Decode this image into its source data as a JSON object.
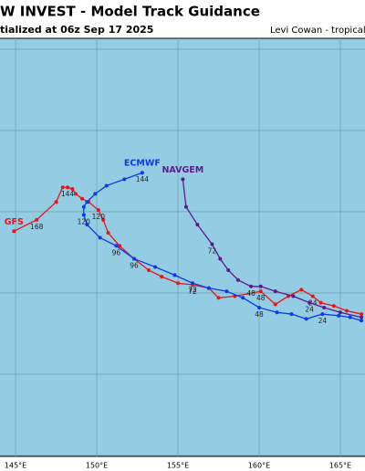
{
  "chart_data": {
    "type": "track",
    "title": "W INVEST - Model Track Guidance",
    "subtitle": "tialized at 06z Sep 17 2025",
    "credit": "Levi Cowan - tropicaltic",
    "xlim": [
      144.04,
      166.52
    ],
    "ylim": [
      4.94,
      30.67
    ],
    "xticks": [
      {
        "value": 145,
        "label": "145°E"
      },
      {
        "value": 150,
        "label": "150°E"
      },
      {
        "value": 155,
        "label": "155°E"
      },
      {
        "value": 160,
        "label": "160°E"
      },
      {
        "value": 165,
        "label": "165°E"
      }
    ],
    "ygrid": [
      5,
      10,
      15,
      20,
      25,
      30
    ],
    "series": [
      {
        "name": "GFS",
        "color": "#e8141a",
        "x": [
          166.3,
          165.4,
          164.6,
          163.8,
          163.3,
          162.6,
          161.8,
          161.0,
          160.1,
          158.5,
          157.5,
          156.9,
          155.9,
          155.0,
          154.0,
          153.2,
          152.3,
          151.4,
          150.7,
          150.4,
          150.1,
          149.5,
          149.1,
          148.7,
          148.5,
          148.2,
          147.9,
          147.5,
          146.3,
          144.9
        ],
        "values": [
          13.7,
          13.9,
          14.2,
          14.4,
          14.8,
          15.2,
          14.8,
          14.3,
          15.1,
          14.8,
          14.7,
          15.3,
          15.5,
          15.6,
          16.0,
          16.4,
          17.1,
          17.9,
          18.7,
          19.5,
          20.1,
          20.6,
          20.8,
          21.1,
          21.4,
          21.5,
          21.5,
          20.6,
          19.5,
          18.8
        ],
        "labels": [
          null,
          null,
          null,
          null,
          "24",
          null,
          null,
          null,
          "48",
          null,
          null,
          null,
          "72",
          null,
          null,
          null,
          "96",
          null,
          null,
          null,
          "120",
          null,
          null,
          null,
          null,
          "144",
          null,
          null,
          "168",
          null
        ]
      },
      {
        "name": "ECMWF",
        "color": "#0a3be6",
        "x": [
          166.3,
          165.6,
          164.9,
          163.9,
          162.9,
          162.0,
          161.1,
          160.0,
          159.0,
          158.0,
          156.9,
          155.9,
          154.8,
          153.6,
          152.3,
          151.2,
          150.2,
          149.4,
          149.2,
          149.2,
          149.4,
          149.9,
          150.6,
          151.7,
          152.8
        ],
        "values": [
          13.3,
          13.5,
          13.6,
          13.7,
          13.4,
          13.7,
          13.8,
          14.1,
          14.7,
          15.1,
          15.3,
          15.6,
          16.1,
          16.6,
          17.1,
          17.9,
          18.4,
          19.2,
          19.8,
          20.3,
          20.6,
          21.1,
          21.6,
          22.0,
          22.4
        ],
        "labels": [
          null,
          null,
          null,
          "24",
          null,
          null,
          null,
          "48",
          null,
          null,
          null,
          "72",
          null,
          null,
          null,
          "96",
          null,
          null,
          "120",
          null,
          null,
          null,
          null,
          null,
          "144"
        ]
      },
      {
        "name": "NAVGEM",
        "color": "#5b1a8c",
        "x": [
          166.3,
          165.0,
          164.0,
          163.1,
          162.1,
          161.0,
          160.1,
          159.5,
          158.7,
          158.1,
          157.6,
          157.1,
          156.2,
          155.5,
          155.3
        ],
        "values": [
          13.5,
          13.8,
          14.1,
          14.4,
          14.8,
          15.1,
          15.4,
          15.4,
          15.8,
          16.4,
          17.1,
          18.0,
          19.2,
          20.3,
          22.0
        ],
        "labels": [
          null,
          null,
          null,
          "24",
          null,
          null,
          null,
          "48",
          null,
          null,
          null,
          "72",
          null,
          null,
          null
        ]
      }
    ]
  }
}
